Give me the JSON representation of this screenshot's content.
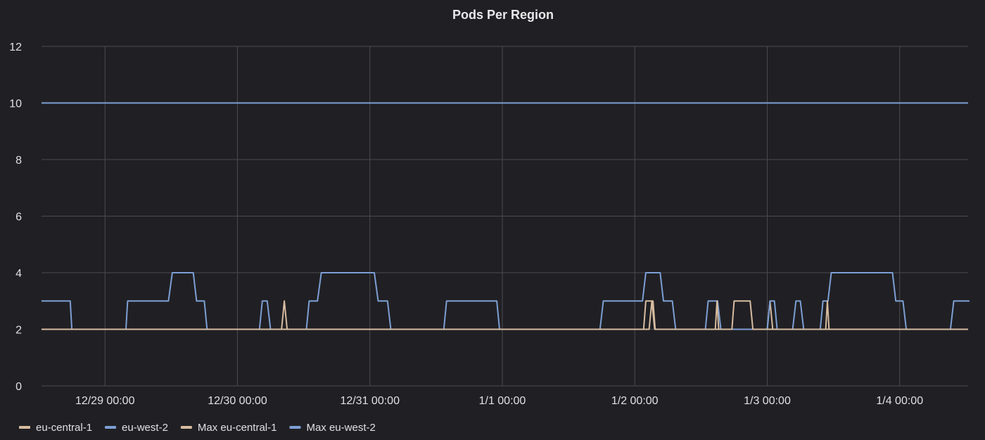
{
  "chart_data": {
    "type": "line",
    "title": "Pods Per Region",
    "xlabel": "",
    "ylabel": "",
    "ylim": [
      0,
      12
    ],
    "y_ticks": [
      "0",
      "2",
      "4",
      "6",
      "8",
      "10",
      "12"
    ],
    "x_range_hours": [
      -11.5,
      156.4
    ],
    "x_ticks": [
      {
        "label": "12/29 00:00",
        "hour": 0
      },
      {
        "label": "12/30 00:00",
        "hour": 24
      },
      {
        "label": "12/31 00:00",
        "hour": 48
      },
      {
        "label": "1/1 00:00",
        "hour": 72
      },
      {
        "label": "1/2 00:00",
        "hour": 96
      },
      {
        "label": "1/3 00:00",
        "hour": 120
      },
      {
        "label": "1/4 00:00",
        "hour": 144
      }
    ],
    "grid": true,
    "legend_position": "bottom-left",
    "series": [
      {
        "name": "eu-central-1",
        "color": "#d7bca0",
        "points": [
          [
            -11.5,
            2
          ],
          [
            32.0,
            2
          ],
          [
            32.5,
            3
          ],
          [
            33.0,
            2
          ],
          [
            98.6,
            2
          ],
          [
            99.1,
            3
          ],
          [
            99.6,
            2
          ],
          [
            120.0,
            2
          ],
          [
            120.5,
            3
          ],
          [
            121.0,
            2
          ],
          [
            156.4,
            2
          ]
        ]
      },
      {
        "name": "eu-west-2",
        "color": "#7d9fd4",
        "points": [
          [
            -11.5,
            3
          ],
          [
            -6.3,
            3
          ],
          [
            -6.0,
            2
          ],
          [
            3.8,
            2
          ],
          [
            4.1,
            3
          ],
          [
            11.5,
            3
          ],
          [
            12.2,
            4
          ],
          [
            16.0,
            4
          ],
          [
            16.6,
            3
          ],
          [
            18.0,
            3
          ],
          [
            18.5,
            2
          ],
          [
            28.0,
            2
          ],
          [
            28.5,
            3
          ],
          [
            29.4,
            3
          ],
          [
            30.0,
            2
          ],
          [
            36.5,
            2
          ],
          [
            37.0,
            3
          ],
          [
            38.5,
            3
          ],
          [
            39.2,
            4
          ],
          [
            48.8,
            4
          ],
          [
            49.5,
            3
          ],
          [
            51.2,
            3
          ],
          [
            51.8,
            2
          ],
          [
            61.4,
            2
          ],
          [
            61.9,
            3
          ],
          [
            71.0,
            3
          ],
          [
            71.5,
            2
          ],
          [
            89.7,
            2
          ],
          [
            90.3,
            3
          ],
          [
            97.4,
            3
          ],
          [
            98.0,
            4
          ],
          [
            100.6,
            4
          ],
          [
            101.2,
            3
          ],
          [
            102.8,
            3
          ],
          [
            103.4,
            2
          ],
          [
            108.8,
            2
          ],
          [
            109.3,
            3
          ],
          [
            111.0,
            3
          ],
          [
            111.6,
            2
          ],
          [
            120.0,
            2
          ],
          [
            120.5,
            3
          ],
          [
            121.3,
            3
          ],
          [
            121.8,
            2
          ],
          [
            124.6,
            2
          ],
          [
            125.2,
            3
          ],
          [
            126.0,
            3
          ],
          [
            126.6,
            2
          ],
          [
            129.6,
            2
          ],
          [
            130.1,
            3
          ],
          [
            131.0,
            3
          ],
          [
            131.6,
            4
          ],
          [
            142.7,
            4
          ],
          [
            143.3,
            3
          ],
          [
            144.6,
            3
          ],
          [
            145.2,
            2
          ],
          [
            153.2,
            2
          ],
          [
            153.8,
            3
          ],
          [
            159.8,
            3
          ],
          [
            160.3,
            4
          ],
          [
            166.4,
            4
          ]
        ]
      },
      {
        "name": "Max eu-central-1",
        "color": "#d7bca0",
        "points": [
          [
            -11.5,
            2
          ],
          [
            0,
            2
          ],
          [
            96,
            2
          ],
          [
            97.6,
            2
          ],
          [
            98.0,
            3
          ],
          [
            99.3,
            3
          ],
          [
            99.7,
            2
          ],
          [
            110.6,
            2
          ],
          [
            110.9,
            3
          ],
          [
            111.2,
            2
          ],
          [
            113.6,
            2
          ],
          [
            114.0,
            3
          ],
          [
            116.9,
            3
          ],
          [
            117.4,
            2
          ],
          [
            130.6,
            2
          ],
          [
            130.9,
            3
          ],
          [
            131.2,
            2
          ],
          [
            156.4,
            2
          ]
        ]
      },
      {
        "name": "Max eu-west-2",
        "color": "#7d9fd4",
        "points": [
          [
            -11.5,
            10
          ],
          [
            156.4,
            10
          ]
        ]
      }
    ]
  }
}
